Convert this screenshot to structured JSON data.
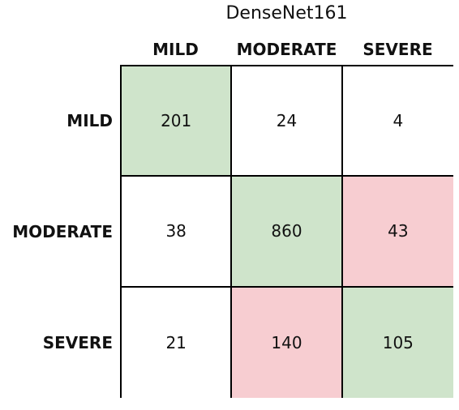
{
  "chart_data": {
    "type": "heatmap",
    "title": "DenseNet161",
    "columns": [
      "MILD",
      "MODERATE",
      "SEVERE"
    ],
    "rows": [
      "MILD",
      "MODERATE",
      "SEVERE"
    ],
    "values": [
      [
        201,
        24,
        4
      ],
      [
        38,
        860,
        43
      ],
      [
        21,
        140,
        105
      ]
    ],
    "cell_colors": [
      [
        "#cfe4cb",
        "#ffffff",
        "#ffffff"
      ],
      [
        "#ffffff",
        "#cfe4cb",
        "#f7cdd1"
      ],
      [
        "#ffffff",
        "#f7cdd1",
        "#cfe4cb"
      ]
    ],
    "legend": "none",
    "grid": true
  }
}
